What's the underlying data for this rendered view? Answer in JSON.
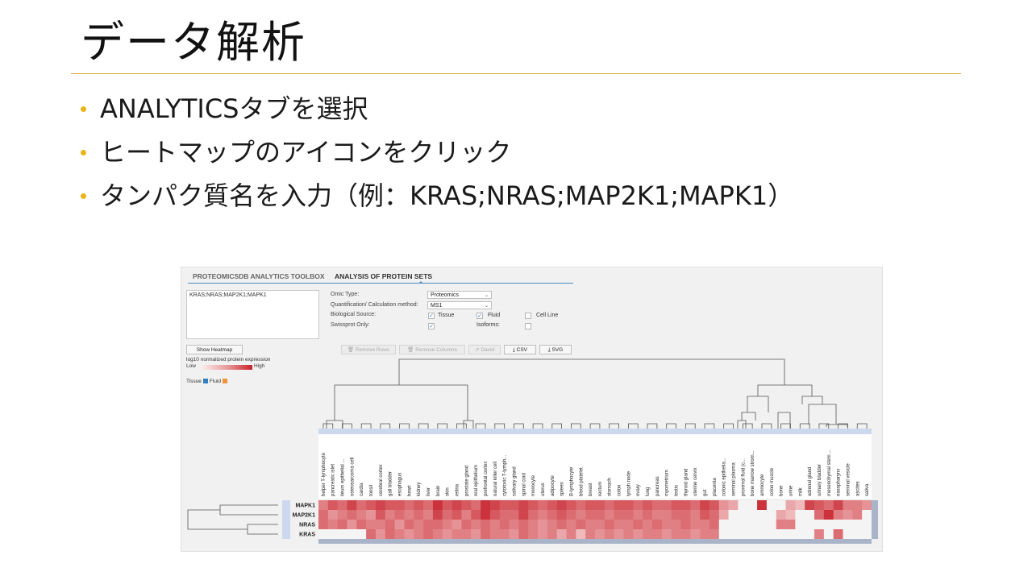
{
  "slide": {
    "title": "データ解析",
    "bullets": [
      "ANALYTICSタブを選択",
      "ヒートマップのアイコンをクリック",
      "タンパク質名を入力（例：KRAS;NRAS;MAP2K1;MAPK1）"
    ]
  },
  "tabs": {
    "inactive": "PROTEOMICSDB ANALYTICS TOOLBOX",
    "active": "ANALYSIS OF PROTEIN SETS"
  },
  "protein_input": "KRAS;NRAS;MAP2K1;MAPK1",
  "form": {
    "omic_type_label": "Omic Type:",
    "omic_type_value": "Proteomics",
    "quant_label": "Quantification/ Calculation method:",
    "quant_value": "MS1",
    "bio_source_label": "Biological Source:",
    "swissprot_label": "Swissprot Only:",
    "tissue_label": "Tissue",
    "fluid_label": "Fluid",
    "cell_line_label": "Cell Line",
    "isoforms_label": "Isoforms:",
    "tissue_checked": true,
    "fluid_checked": true,
    "cell_line_checked": false,
    "swissprot_checked": true,
    "isoforms_checked": false
  },
  "buttons": {
    "show_heatmap": "Show Heatmap",
    "remove_rows": "Remove Rows",
    "remove_columns": "Remove Columns",
    "david": "David",
    "csv": "CSV",
    "svg": "SVG"
  },
  "legend": {
    "title": "log10 normalized protein expression",
    "low": "Low",
    "high": "High",
    "tissue": "Tissue",
    "fluid": "Fluid",
    "tissue_color": "#2f7fc1",
    "fluid_color": "#f0943a"
  },
  "heatmap": {
    "rows": [
      "MAPK1",
      "MAP2K1",
      "NRAS",
      "KRAS"
    ],
    "columns": [
      "helper T-lymphocyte",
      "pancreatic islet",
      "ileum epithelial ...",
      "osteosarcoma cell",
      "cardia",
      "tonsil",
      "cerebral cortex",
      "gall bladder",
      "esophagus",
      "heart",
      "kidney",
      "liver",
      "brain",
      "skin",
      "retina",
      "prostate gland",
      "oral epithelium",
      "prefrontal cortex",
      "natural killer cell",
      "cytotoxic T-lymph...",
      "salivary gland",
      "spinal cord",
      "monocyte",
      "uterus",
      "adipocyte",
      "spleen",
      "B-lymphocyte",
      "blood platelet",
      "breast",
      "rectum",
      "stomach",
      "colon",
      "lymph node",
      "ovary",
      "lung",
      "pancreas",
      "myometrium",
      "testis",
      "thyroid gland",
      "uterine cervix",
      "gut",
      "placenta",
      "colonic epithelia...",
      "seminal plasma",
      "proximal fluid (c...",
      "bone marrow strom...",
      "amniocyte",
      "colon muscle",
      "bone",
      "urine",
      "milk",
      "adrenal gland",
      "urinary bladder",
      "mesenchymal stem ...",
      "nasopharynx",
      "seminal vesicle",
      "ascites",
      "saliva"
    ],
    "values": [
      [
        0.5,
        0.7,
        0.6,
        0.8,
        0.6,
        0.7,
        0.8,
        0.7,
        0.7,
        0.6,
        0.7,
        0.6,
        0.9,
        0.7,
        0.8,
        0.7,
        0.6,
        0.9,
        0.8,
        0.7,
        0.7,
        0.8,
        0.7,
        0.6,
        0.7,
        0.8,
        0.7,
        0.6,
        0.7,
        0.7,
        0.6,
        0.7,
        0.7,
        0.6,
        0.7,
        0.6,
        0.6,
        0.7,
        0.7,
        0.6,
        0.8,
        0.7,
        0.4,
        0.3,
        0.0,
        0.0,
        0.9,
        0.0,
        0.0,
        0.3,
        0.2,
        0.8,
        0.7,
        0.6,
        0.8,
        0.5,
        0.5,
        0.4
      ],
      [
        0.6,
        0.4,
        0.5,
        0.6,
        0.5,
        0.4,
        0.7,
        0.5,
        0.6,
        0.5,
        0.6,
        0.5,
        0.8,
        0.6,
        0.7,
        0.5,
        0.7,
        0.9,
        0.7,
        0.6,
        0.6,
        0.8,
        0.6,
        0.5,
        0.6,
        0.7,
        0.6,
        0.5,
        0.6,
        0.6,
        0.5,
        0.6,
        0.6,
        0.5,
        0.6,
        0.5,
        0.5,
        0.6,
        0.6,
        0.5,
        0.7,
        0.6,
        0.3,
        0.0,
        0.0,
        0.0,
        0.0,
        0.0,
        0.3,
        0.2,
        0.0,
        0.0,
        0.6,
        0.9,
        0.5,
        0.4,
        0.5,
        0.0
      ],
      [
        0.6,
        0.5,
        0.6,
        0.4,
        0.6,
        0.5,
        0.5,
        0.6,
        0.4,
        0.6,
        0.5,
        0.6,
        0.6,
        0.5,
        0.4,
        0.6,
        0.5,
        0.6,
        0.5,
        0.6,
        0.5,
        0.6,
        0.5,
        0.4,
        0.5,
        0.6,
        0.5,
        0.6,
        0.5,
        0.5,
        0.6,
        0.5,
        0.5,
        0.6,
        0.5,
        0.6,
        0.5,
        0.5,
        0.6,
        0.5,
        0.5,
        0.6,
        0.0,
        0.0,
        0.0,
        0.0,
        0.0,
        0.0,
        0.5,
        0.5,
        0.0,
        0.0,
        0.0,
        0.0,
        0.0,
        0.0,
        0.0,
        0.0
      ],
      [
        0.0,
        0.0,
        0.0,
        0.0,
        0.0,
        0.6,
        0.4,
        0.6,
        0.5,
        0.4,
        0.5,
        0.6,
        0.5,
        0.4,
        0.5,
        0.5,
        0.4,
        0.6,
        0.5,
        0.5,
        0.4,
        0.6,
        0.5,
        0.4,
        0.5,
        0.3,
        0.5,
        0.2,
        0.5,
        0.4,
        0.5,
        0.4,
        0.5,
        0.4,
        0.5,
        0.5,
        0.4,
        0.5,
        0.5,
        0.4,
        0.5,
        0.5,
        0.0,
        0.0,
        0.0,
        0.0,
        0.0,
        0.0,
        0.0,
        0.0,
        0.0,
        0.0,
        0.5,
        0.0,
        0.6,
        0.0,
        0.0,
        0.0
      ]
    ]
  }
}
